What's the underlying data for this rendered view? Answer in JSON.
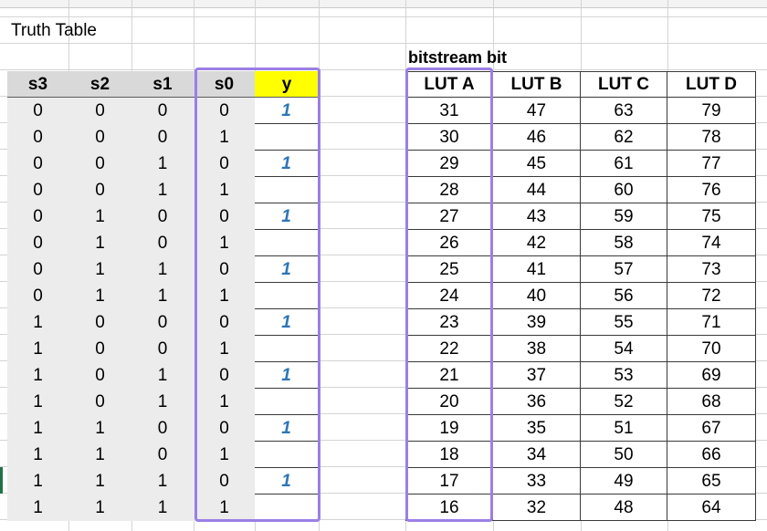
{
  "sheet": {
    "title": "Truth Table",
    "bitstream_label": "bitstream bit",
    "truth_headers": [
      "s3",
      "s2",
      "s1",
      "s0",
      "y"
    ],
    "lut_headers": [
      "LUT A",
      "LUT B",
      "LUT C",
      "LUT D"
    ],
    "rows": [
      {
        "s3": "0",
        "s2": "0",
        "s1": "0",
        "s0": "0",
        "y": "1",
        "a": "31",
        "b": "47",
        "c": "63",
        "d": "79"
      },
      {
        "s3": "0",
        "s2": "0",
        "s1": "0",
        "s0": "1",
        "y": "",
        "a": "30",
        "b": "46",
        "c": "62",
        "d": "78"
      },
      {
        "s3": "0",
        "s2": "0",
        "s1": "1",
        "s0": "0",
        "y": "1",
        "a": "29",
        "b": "45",
        "c": "61",
        "d": "77"
      },
      {
        "s3": "0",
        "s2": "0",
        "s1": "1",
        "s0": "1",
        "y": "",
        "a": "28",
        "b": "44",
        "c": "60",
        "d": "76"
      },
      {
        "s3": "0",
        "s2": "1",
        "s1": "0",
        "s0": "0",
        "y": "1",
        "a": "27",
        "b": "43",
        "c": "59",
        "d": "75"
      },
      {
        "s3": "0",
        "s2": "1",
        "s1": "0",
        "s0": "1",
        "y": "",
        "a": "26",
        "b": "42",
        "c": "58",
        "d": "74"
      },
      {
        "s3": "0",
        "s2": "1",
        "s1": "1",
        "s0": "0",
        "y": "1",
        "a": "25",
        "b": "41",
        "c": "57",
        "d": "73"
      },
      {
        "s3": "0",
        "s2": "1",
        "s1": "1",
        "s0": "1",
        "y": "",
        "a": "24",
        "b": "40",
        "c": "56",
        "d": "72"
      },
      {
        "s3": "1",
        "s2": "0",
        "s1": "0",
        "s0": "0",
        "y": "1",
        "a": "23",
        "b": "39",
        "c": "55",
        "d": "71"
      },
      {
        "s3": "1",
        "s2": "0",
        "s1": "0",
        "s0": "1",
        "y": "",
        "a": "22",
        "b": "38",
        "c": "54",
        "d": "70"
      },
      {
        "s3": "1",
        "s2": "0",
        "s1": "1",
        "s0": "0",
        "y": "1",
        "a": "21",
        "b": "37",
        "c": "53",
        "d": "69"
      },
      {
        "s3": "1",
        "s2": "0",
        "s1": "1",
        "s0": "1",
        "y": "",
        "a": "20",
        "b": "36",
        "c": "52",
        "d": "68"
      },
      {
        "s3": "1",
        "s2": "1",
        "s1": "0",
        "s0": "0",
        "y": "1",
        "a": "19",
        "b": "35",
        "c": "51",
        "d": "67"
      },
      {
        "s3": "1",
        "s2": "1",
        "s1": "0",
        "s0": "1",
        "y": "",
        "a": "18",
        "b": "34",
        "c": "50",
        "d": "66"
      },
      {
        "s3": "1",
        "s2": "1",
        "s1": "1",
        "s0": "0",
        "y": "1",
        "a": "17",
        "b": "33",
        "c": "49",
        "d": "65"
      },
      {
        "s3": "1",
        "s2": "1",
        "s1": "1",
        "s0": "1",
        "y": "",
        "a": "16",
        "b": "32",
        "c": "48",
        "d": "64"
      }
    ]
  },
  "colors": {
    "highlight": "#9b7fe6",
    "y_value": "#2e75b6",
    "y_header": "#ffff00"
  }
}
